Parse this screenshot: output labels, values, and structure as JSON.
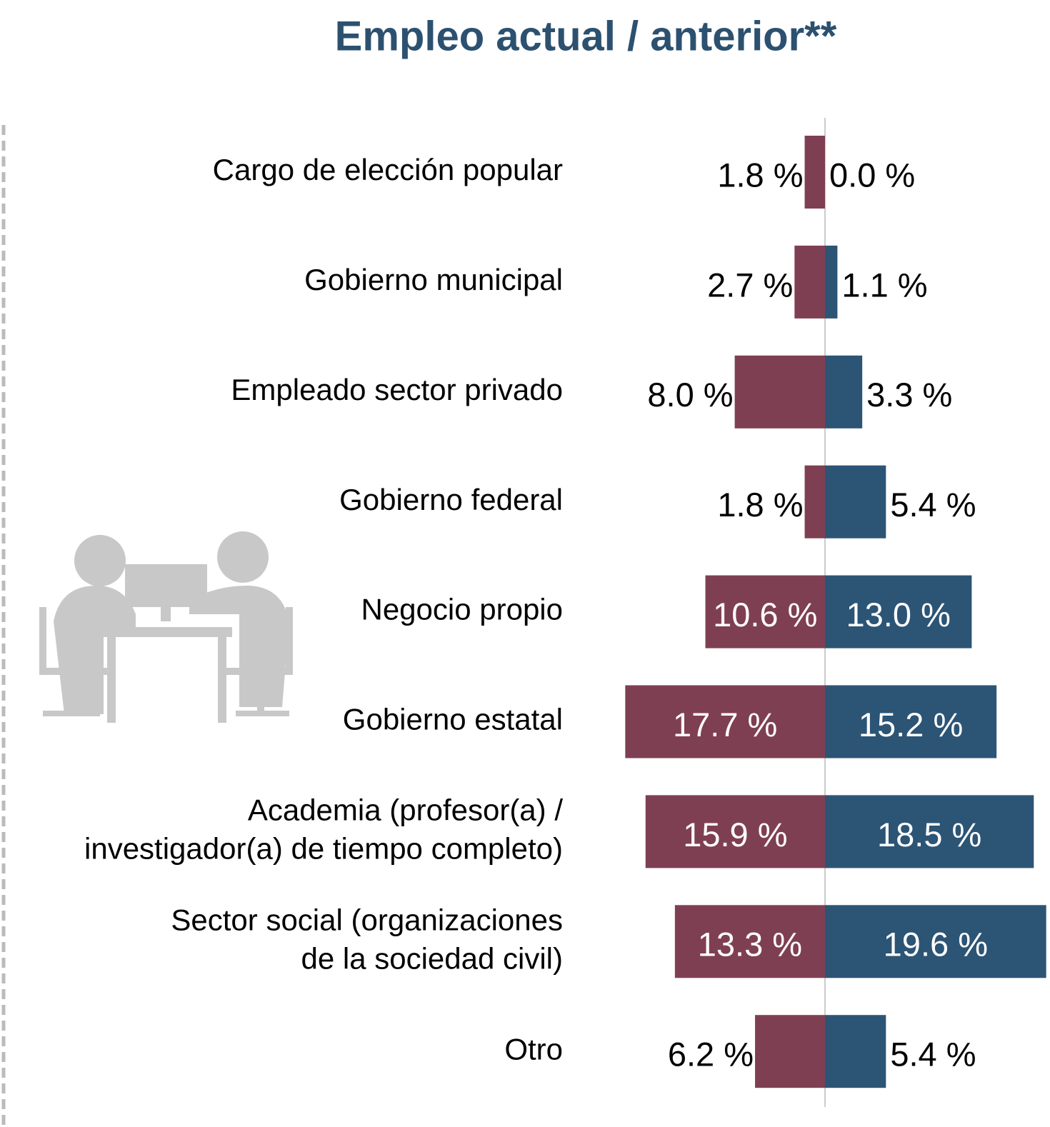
{
  "chart_data": {
    "type": "butterfly-bar",
    "title": "Empleo actual / anterior**",
    "categories": [
      "Cargo de elección popular",
      "Gobierno municipal",
      "Empleado sector privado",
      "Gobierno federal",
      "Negocio propio",
      "Gobierno estatal",
      "Academia (profesor(a) /\ninvestigador(a) de tiempo completo)",
      "Sector social (organizaciones\nde la sociedad civil)",
      "Otro"
    ],
    "series": [
      {
        "color": "#7f3f52",
        "values": [
          1.8,
          2.7,
          8.0,
          1.8,
          10.6,
          17.7,
          15.9,
          13.3,
          6.2
        ],
        "value_labels": [
          "1.8 %",
          "2.7 %",
          "8.0 %",
          "1.8 %",
          "10.6 %",
          "17.7 %",
          "15.9 %",
          "13.3 %",
          "6.2 %"
        ]
      },
      {
        "color": "#2c5475",
        "values": [
          0.0,
          1.1,
          3.3,
          5.4,
          13.0,
          15.2,
          18.5,
          19.6,
          5.4
        ],
        "value_labels": [
          "0.0 %",
          "1.1 %",
          "3.3 %",
          "5.4 %",
          "13.0 %",
          "15.2 %",
          "18.5 %",
          "19.6 %",
          "5.4 %"
        ]
      }
    ]
  }
}
